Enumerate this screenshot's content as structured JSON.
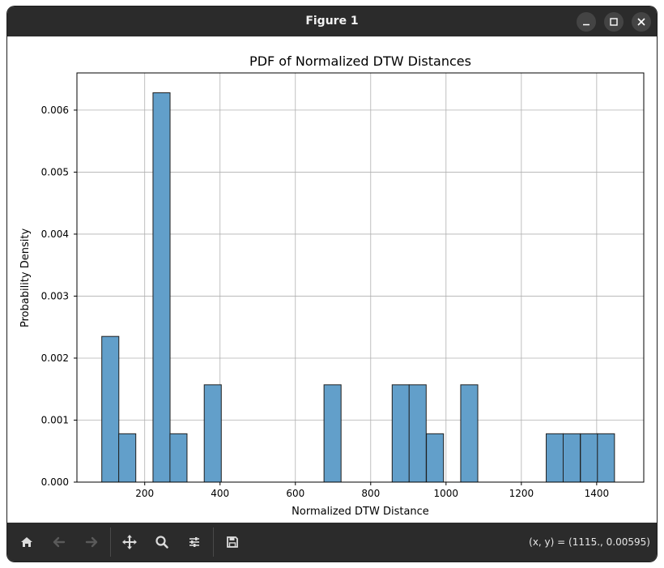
{
  "window": {
    "title": "Figure 1"
  },
  "toolbar": {
    "buttons": [
      {
        "name": "home",
        "enabled": true
      },
      {
        "name": "back",
        "enabled": false
      },
      {
        "name": "forward",
        "enabled": false
      },
      {
        "name": "pan",
        "enabled": true
      },
      {
        "name": "zoom",
        "enabled": true
      },
      {
        "name": "configure-subplots",
        "enabled": true
      },
      {
        "name": "save",
        "enabled": true
      }
    ],
    "coords": "(x, y) = (1115., 0.00595)"
  },
  "colors": {
    "bar_fill": "#629fca",
    "bar_edge": "#1f1f1f",
    "titlebar": "#2b2b2b",
    "grid": "#b0b0b0"
  },
  "chart_data": {
    "type": "bar",
    "title": "PDF of Normalized DTW Distances",
    "xlabel": "Normalized DTW Distance",
    "ylabel": "Probability Density",
    "xlim": [
      20,
      1525
    ],
    "ylim": [
      0,
      0.0066
    ],
    "bin_width": 45.3,
    "xticks": [
      200,
      400,
      600,
      800,
      1000,
      1200,
      1400
    ],
    "yticks": [
      0.0,
      0.001,
      0.002,
      0.003,
      0.004,
      0.005,
      0.006
    ],
    "ytick_labels": [
      "0.000",
      "0.001",
      "0.002",
      "0.003",
      "0.004",
      "0.005",
      "0.006"
    ],
    "grid": true,
    "bars": [
      {
        "x": 86,
        "value": 0.00235
      },
      {
        "x": 131,
        "value": 0.00078
      },
      {
        "x": 222,
        "value": 0.00628
      },
      {
        "x": 267,
        "value": 0.00078
      },
      {
        "x": 358,
        "value": 0.00157
      },
      {
        "x": 676,
        "value": 0.00157
      },
      {
        "x": 857,
        "value": 0.00157
      },
      {
        "x": 902,
        "value": 0.00157
      },
      {
        "x": 948,
        "value": 0.00078
      },
      {
        "x": 1039,
        "value": 0.00157
      },
      {
        "x": 1266,
        "value": 0.00078
      },
      {
        "x": 1311,
        "value": 0.00078
      },
      {
        "x": 1357,
        "value": 0.00078
      },
      {
        "x": 1402,
        "value": 0.00078
      }
    ]
  }
}
